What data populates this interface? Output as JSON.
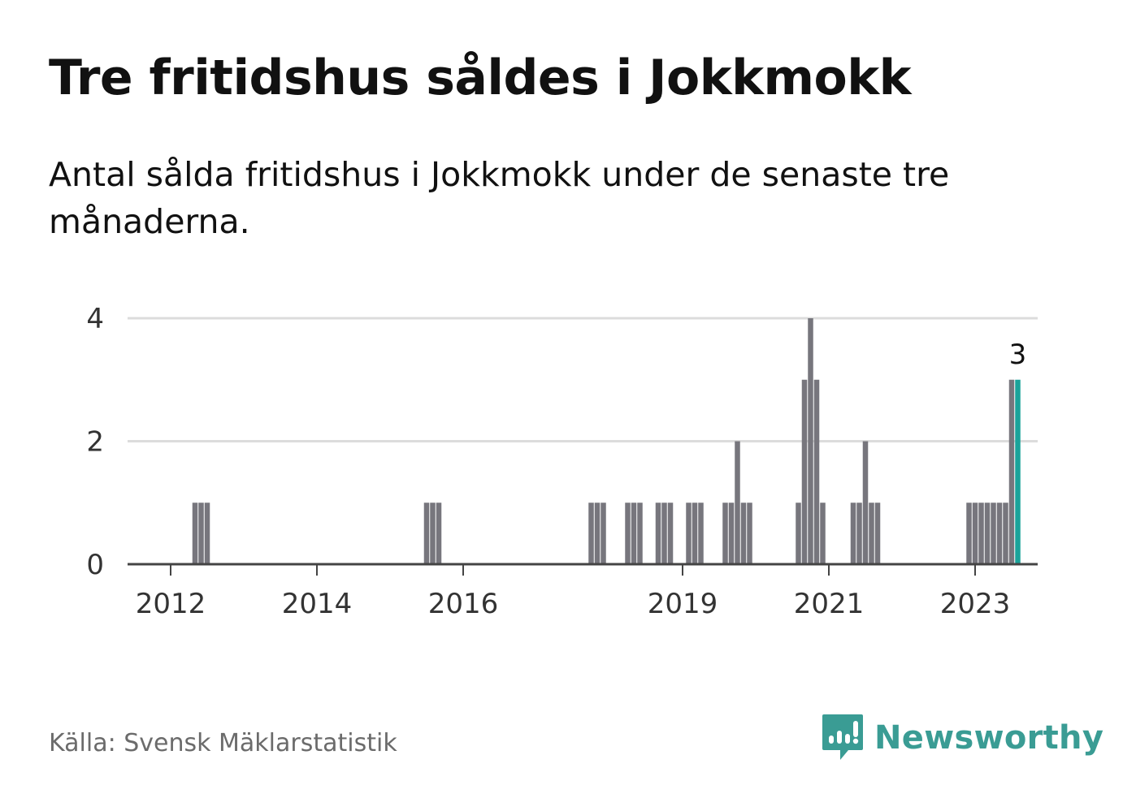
{
  "title": "Tre fritidshus såldes i Jokkmokk",
  "subtitle": "Antal sålda fritidshus i Jokkmokk under de senaste tre månaderna.",
  "source": "Källa: Svensk Mäklarstatistik",
  "brand": {
    "name": "Newsworthy",
    "color": "#3a9c94"
  },
  "colors": {
    "bar": "#77767d",
    "highlight": "#1aa39a",
    "grid": "#dcdcdc",
    "axis": "#444444"
  },
  "chart_data": {
    "type": "bar",
    "ylim": [
      0,
      4
    ],
    "yticks": [
      0,
      2,
      4
    ],
    "xticks": [
      "2012",
      "2014",
      "2016",
      "2019",
      "2021",
      "2023"
    ],
    "grid": true,
    "x": [
      "2012-05",
      "2012-06",
      "2012-07",
      "2015-07",
      "2015-08",
      "2015-09",
      "2017-10",
      "2017-11",
      "2017-12",
      "2018-04",
      "2018-05",
      "2018-06",
      "2018-09",
      "2018-10",
      "2018-11",
      "2019-02",
      "2019-03",
      "2019-04",
      "2019-08",
      "2019-09",
      "2019-10",
      "2019-11",
      "2019-12",
      "2020-08",
      "2020-09",
      "2020-10",
      "2020-11",
      "2020-12",
      "2021-05",
      "2021-06",
      "2021-07",
      "2021-08",
      "2021-09",
      "2022-12",
      "2023-01",
      "2023-02",
      "2023-03",
      "2023-04",
      "2023-05",
      "2023-06",
      "2023-07",
      "2023-08"
    ],
    "values": [
      1,
      1,
      1,
      1,
      1,
      1,
      1,
      1,
      1,
      1,
      1,
      1,
      1,
      1,
      1,
      1,
      1,
      1,
      1,
      1,
      2,
      1,
      1,
      1,
      3,
      4,
      3,
      1,
      1,
      1,
      2,
      1,
      1,
      1,
      1,
      1,
      1,
      1,
      1,
      1,
      3,
      3
    ],
    "highlight_index": 41,
    "highlight_label": "3"
  }
}
